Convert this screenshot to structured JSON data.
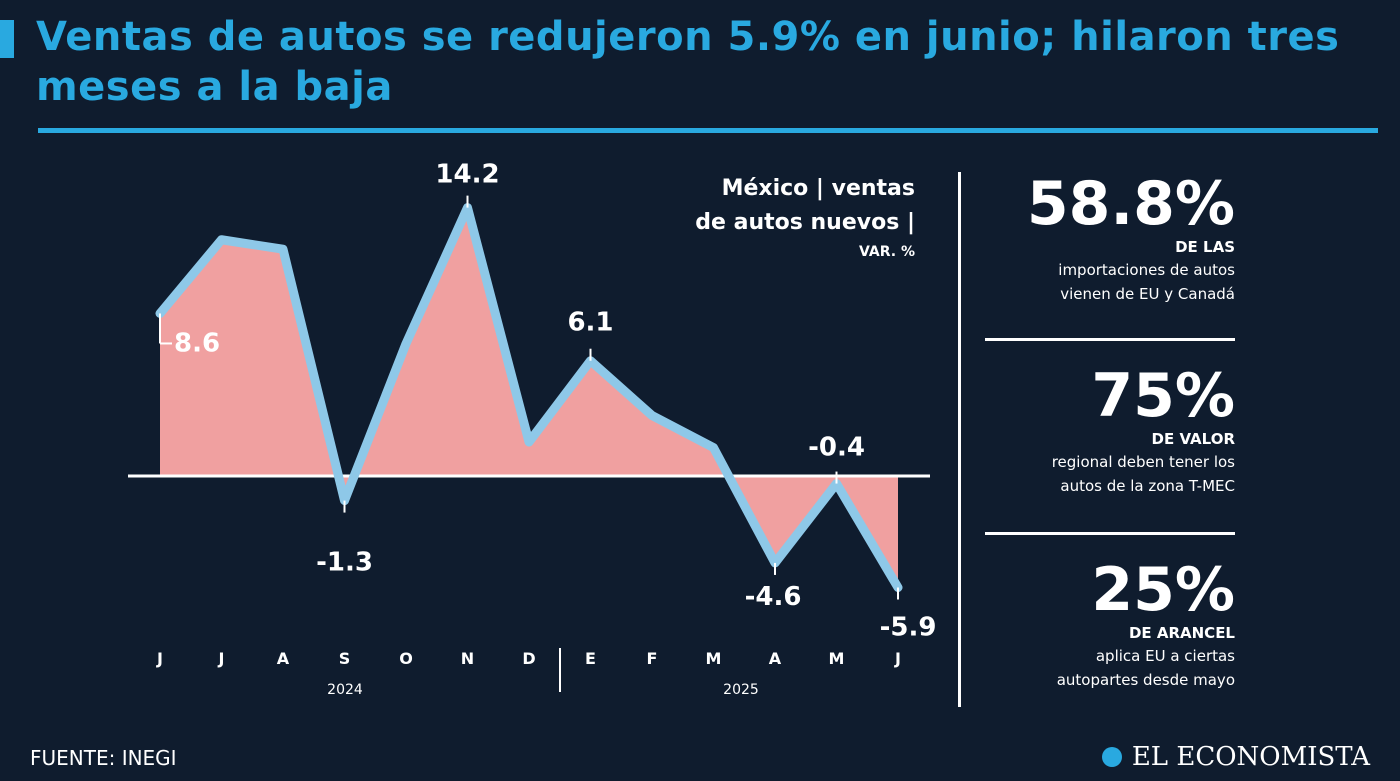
{
  "title": "Ventas de autos se redujeron 5.9% en junio; hilaron tres meses a la baja",
  "subtitle": {
    "line1": "México | ventas",
    "line2": "de autos nuevos |",
    "unit": "VAR. %"
  },
  "chart_data": {
    "type": "area",
    "categories": [
      "J",
      "J",
      "A",
      "S",
      "O",
      "N",
      "D",
      "E",
      "F",
      "M",
      "A",
      "M",
      "J"
    ],
    "values": [
      8.6,
      12.5,
      12.0,
      -1.3,
      7.0,
      14.2,
      1.8,
      6.1,
      3.2,
      1.5,
      -4.6,
      -0.4,
      -5.9
    ],
    "labeled_values": [
      "8.6",
      "",
      "",
      "-1.3",
      "",
      "14.2",
      "",
      "6.1",
      "",
      "",
      "-4.6",
      "-0.4",
      "-5.9"
    ],
    "year_labels": [
      "2024",
      "2025"
    ],
    "ylim": [
      -8,
      16
    ],
    "colors": {
      "positive_fill": "#ffea00",
      "negative_fill": "#f0a0a0",
      "line": "#8ec8e8",
      "baseline": "#ffffff"
    }
  },
  "stats": [
    {
      "value": "58.8%",
      "head": "DE LAS",
      "desc1": "importaciones de autos",
      "desc2": "vienen de EU y Canadá"
    },
    {
      "value": "75%",
      "head": "DE VALOR",
      "desc1": "regional deben tener los",
      "desc2": "autos de la zona T-MEC"
    },
    {
      "value": "25%",
      "head": "DE ARANCEL",
      "desc1": "aplica EU a ciertas",
      "desc2": "autopartes desde mayo"
    }
  ],
  "footer": {
    "source": "FUENTE: INEGI",
    "brand": "EL ECONOMISTA"
  },
  "colors": {
    "accent": "#29a9e0",
    "background": "#0f1c2e"
  }
}
